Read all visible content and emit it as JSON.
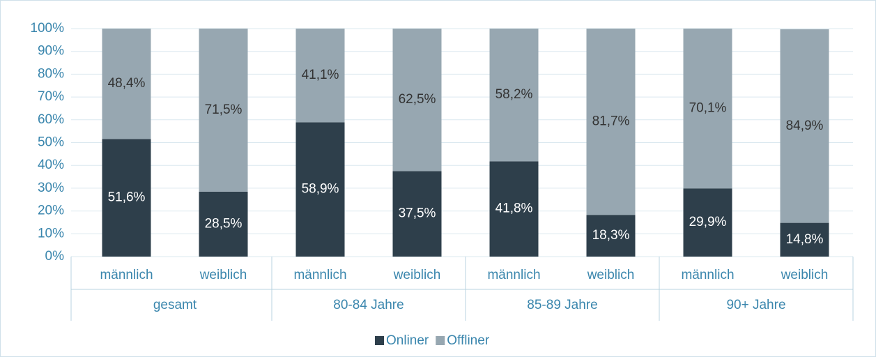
{
  "chart_data": {
    "type": "stacked_bar",
    "groups": [
      {
        "label": "gesamt",
        "categories": [
          "männlich",
          "weiblich"
        ]
      },
      {
        "label": "80-84 Jahre",
        "categories": [
          "männlich",
          "weiblich"
        ]
      },
      {
        "label": "85-89 Jahre",
        "categories": [
          "männlich",
          "weiblich"
        ]
      },
      {
        "label": "90+ Jahre",
        "categories": [
          "männlich",
          "weiblich"
        ]
      }
    ],
    "series": [
      {
        "name": "Onliner",
        "color": "#2e3f4b",
        "label_color": "#ffffff",
        "values": [
          51.6,
          28.5,
          58.9,
          37.5,
          41.8,
          18.3,
          29.9,
          14.8
        ],
        "value_labels": [
          "51,6%",
          "28,5%",
          "58,9%",
          "37,5%",
          "41,8%",
          "18,3%",
          "29,9%",
          "14,8%"
        ]
      },
      {
        "name": "Offliner",
        "color": "#97a7b1",
        "label_color": "#333333",
        "values": [
          48.4,
          71.5,
          41.1,
          62.5,
          58.2,
          81.7,
          70.1,
          84.9
        ],
        "value_labels": [
          "48,4%",
          "71,5%",
          "41,1%",
          "62,5%",
          "58,2%",
          "81,7%",
          "70,1%",
          "84,9%"
        ]
      }
    ],
    "ylim": [
      0,
      100
    ],
    "yticks": [
      {
        "value": 0,
        "label": "0%"
      },
      {
        "value": 10,
        "label": "10%"
      },
      {
        "value": 20,
        "label": "20%"
      },
      {
        "value": 30,
        "label": "30%"
      },
      {
        "value": 40,
        "label": "40%"
      },
      {
        "value": 50,
        "label": "50%"
      },
      {
        "value": 60,
        "label": "60%"
      },
      {
        "value": 70,
        "label": "70%"
      },
      {
        "value": 80,
        "label": "80%"
      },
      {
        "value": 90,
        "label": "90%"
      },
      {
        "value": 100,
        "label": "100%"
      }
    ],
    "grid": true,
    "legend": "bottom"
  }
}
